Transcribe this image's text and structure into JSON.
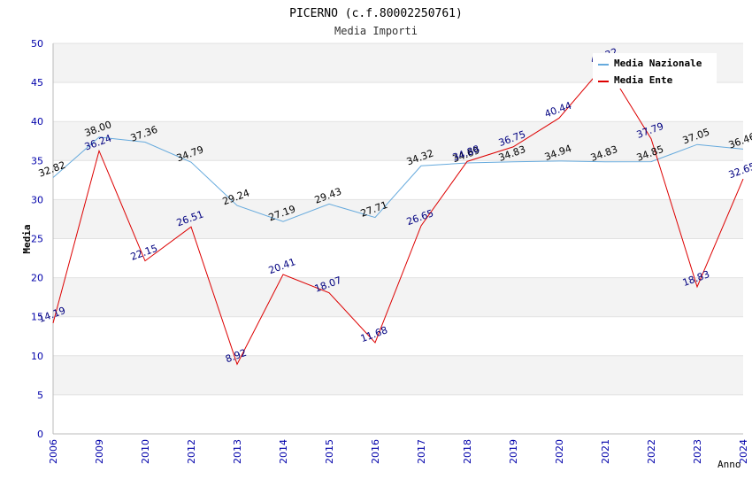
{
  "chart_data": {
    "type": "line",
    "title": "PICERNO (c.f.80002250761)",
    "subtitle": "Media Importi",
    "xlabel": "Anno",
    "ylabel": "Media",
    "ylim": [
      0,
      50
    ],
    "yticks": [
      0,
      5,
      10,
      15,
      20,
      25,
      30,
      35,
      40,
      45,
      50
    ],
    "categories": [
      "2006",
      "2009",
      "2010",
      "2012",
      "2013",
      "2014",
      "2015",
      "2016",
      "2017",
      "2018",
      "2019",
      "2020",
      "2021",
      "2022",
      "2023",
      "2024"
    ],
    "series": [
      {
        "name": "Media Nazionale",
        "color": "#66aadd",
        "label_color": "#000000",
        "values": [
          32.82,
          38.0,
          37.36,
          34.79,
          29.24,
          27.19,
          29.43,
          27.71,
          34.32,
          34.69,
          34.83,
          34.94,
          34.83,
          34.85,
          37.05,
          36.46
        ],
        "labels": [
          "32.82",
          "38.00",
          "37.36",
          "34.79",
          "29.24",
          "27.19",
          "29.43",
          "27.71",
          "34.32",
          "34.69",
          "34.83",
          "34.94",
          "34.83",
          "34.85",
          "37.05",
          "36.46"
        ]
      },
      {
        "name": "Media Ente",
        "color": "#dd0000",
        "label_color": "#000080",
        "values": [
          14.19,
          36.24,
          22.15,
          26.51,
          8.92,
          20.41,
          18.07,
          11.68,
          26.65,
          34.88,
          36.75,
          40.44,
          47.32,
          37.79,
          18.83,
          32.65
        ],
        "labels": [
          "14.19",
          "36.24",
          "22.15",
          "26.51",
          "8.92",
          "20.41",
          "18.07",
          "11.68",
          "26.65",
          "34.88",
          "36.75",
          "40.44",
          "47.32",
          "37.79",
          "18.83",
          "32.65"
        ]
      }
    ],
    "legend": "top-right",
    "grid": true
  }
}
